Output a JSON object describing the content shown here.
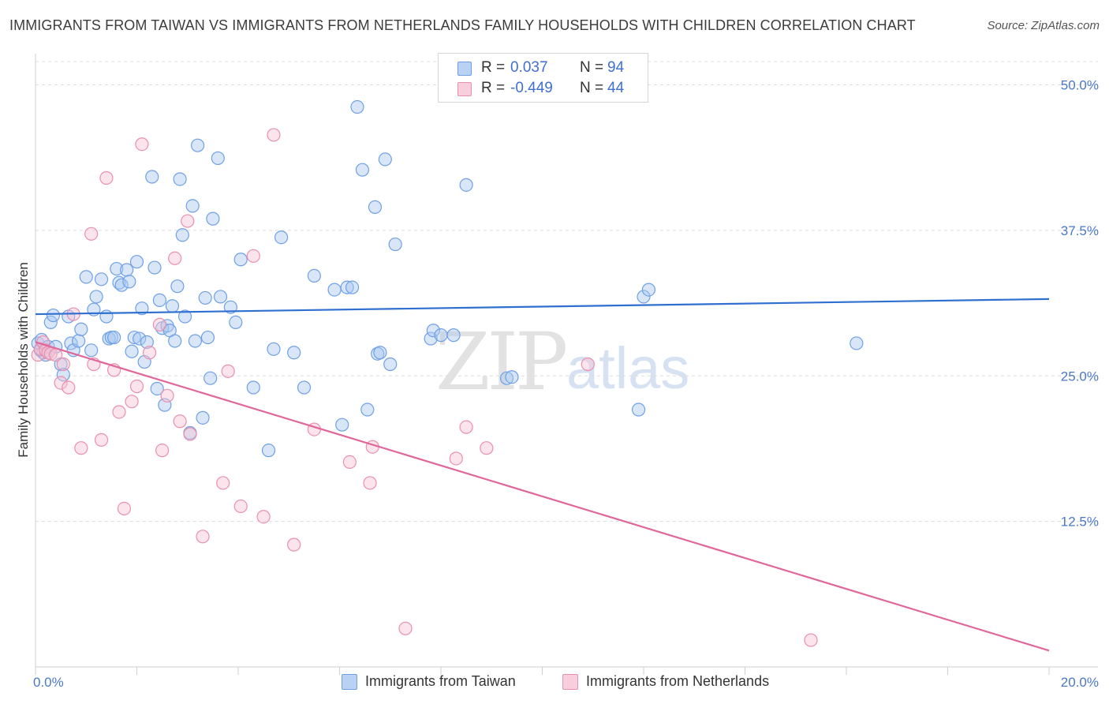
{
  "chart_data": {
    "type": "scatter",
    "title": "IMMIGRANTS FROM TAIWAN VS IMMIGRANTS FROM NETHERLANDS FAMILY HOUSEHOLDS WITH CHILDREN CORRELATION CHART",
    "source": "Source: ZipAtlas.com",
    "xlabel": "",
    "ylabel": "Family Households with Children",
    "xlim": [
      0,
      20
    ],
    "ylim": [
      0,
      52
    ],
    "x_tick_labels": [
      "0.0%",
      "20.0%"
    ],
    "y_ticks": [
      12.5,
      25.0,
      37.5,
      50.0
    ],
    "y_tick_labels": [
      "12.5%",
      "25.0%",
      "37.5%",
      "50.0%"
    ],
    "grid": "horizontal dashed",
    "legend_placement": "top-center",
    "watermark": {
      "zip": "ZIP",
      "atlas": "atlas"
    },
    "legend_top": [
      {
        "r_label": "R =",
        "r_value": "0.037",
        "n_label": "N =",
        "n_value": "94"
      },
      {
        "r_label": "R =",
        "r_value": "-0.449",
        "n_label": "N =",
        "n_value": "44"
      }
    ],
    "series": [
      {
        "name": "Immigrants from Taiwan",
        "color": "#6fa0e6",
        "fill": "#a9c8f0",
        "line_color": "#2f6fcf",
        "trend": {
          "x": [
            0,
            20
          ],
          "y": [
            30.3,
            31.6
          ]
        },
        "points": [
          [
            0.05,
            27.8
          ],
          [
            0.1,
            27.2
          ],
          [
            0.12,
            28.1
          ],
          [
            0.15,
            27.0
          ],
          [
            0.2,
            26.8
          ],
          [
            0.25,
            27.5
          ],
          [
            0.3,
            29.6
          ],
          [
            0.35,
            30.2
          ],
          [
            0.4,
            27.5
          ],
          [
            0.5,
            26.0
          ],
          [
            0.55,
            25.1
          ],
          [
            0.65,
            30.1
          ],
          [
            0.7,
            27.8
          ],
          [
            0.75,
            27.2
          ],
          [
            0.85,
            28.0
          ],
          [
            0.9,
            29.0
          ],
          [
            1.0,
            33.5
          ],
          [
            1.1,
            27.2
          ],
          [
            1.15,
            30.7
          ],
          [
            1.2,
            31.8
          ],
          [
            1.3,
            33.3
          ],
          [
            1.4,
            30.1
          ],
          [
            1.45,
            28.2
          ],
          [
            1.5,
            28.3
          ],
          [
            1.55,
            28.3
          ],
          [
            1.6,
            34.2
          ],
          [
            1.65,
            33.0
          ],
          [
            1.7,
            32.8
          ],
          [
            1.8,
            34.1
          ],
          [
            1.85,
            33.1
          ],
          [
            1.9,
            27.1
          ],
          [
            1.95,
            28.3
          ],
          [
            2.0,
            34.8
          ],
          [
            2.05,
            28.2
          ],
          [
            2.1,
            30.8
          ],
          [
            2.15,
            26.2
          ],
          [
            2.2,
            27.9
          ],
          [
            2.3,
            42.1
          ],
          [
            2.35,
            34.3
          ],
          [
            2.4,
            23.9
          ],
          [
            2.45,
            31.5
          ],
          [
            2.5,
            29.1
          ],
          [
            2.55,
            22.5
          ],
          [
            2.6,
            29.3
          ],
          [
            2.65,
            28.9
          ],
          [
            2.7,
            31.0
          ],
          [
            2.75,
            28.0
          ],
          [
            2.8,
            32.7
          ],
          [
            2.85,
            41.9
          ],
          [
            2.9,
            37.1
          ],
          [
            2.95,
            30.1
          ],
          [
            3.05,
            20.1
          ],
          [
            3.1,
            39.6
          ],
          [
            3.15,
            28.0
          ],
          [
            3.2,
            44.8
          ],
          [
            3.3,
            21.4
          ],
          [
            3.35,
            31.7
          ],
          [
            3.4,
            28.3
          ],
          [
            3.45,
            24.8
          ],
          [
            3.5,
            38.5
          ],
          [
            3.6,
            43.7
          ],
          [
            3.65,
            31.8
          ],
          [
            3.85,
            30.9
          ],
          [
            3.95,
            29.6
          ],
          [
            4.05,
            35.0
          ],
          [
            4.3,
            24.0
          ],
          [
            4.6,
            18.6
          ],
          [
            4.7,
            27.3
          ],
          [
            4.85,
            36.9
          ],
          [
            5.1,
            27.0
          ],
          [
            5.3,
            24.0
          ],
          [
            5.5,
            33.6
          ],
          [
            5.9,
            32.4
          ],
          [
            6.05,
            20.8
          ],
          [
            6.15,
            32.6
          ],
          [
            6.25,
            32.6
          ],
          [
            6.35,
            48.1
          ],
          [
            6.45,
            42.7
          ],
          [
            6.55,
            22.1
          ],
          [
            6.7,
            39.5
          ],
          [
            6.75,
            26.9
          ],
          [
            6.8,
            27.0
          ],
          [
            6.9,
            43.6
          ],
          [
            7.0,
            26.0
          ],
          [
            7.1,
            36.3
          ],
          [
            7.8,
            28.2
          ],
          [
            7.85,
            28.9
          ],
          [
            8.0,
            28.5
          ],
          [
            8.25,
            28.5
          ],
          [
            8.5,
            41.4
          ],
          [
            9.3,
            24.8
          ],
          [
            9.4,
            24.9
          ],
          [
            11.9,
            22.1
          ],
          [
            12.0,
            31.8
          ],
          [
            12.1,
            32.4
          ],
          [
            16.2,
            27.8
          ]
        ]
      },
      {
        "name": "Immigrants from Netherlands",
        "color": "#ea8fae",
        "fill": "#f6c3d4",
        "line_color": "#e0679a",
        "trend": {
          "x": [
            0,
            20
          ],
          "y": [
            27.9,
            1.4
          ]
        },
        "points": [
          [
            0.05,
            26.8
          ],
          [
            0.1,
            27.3
          ],
          [
            0.15,
            27.9
          ],
          [
            0.2,
            27.2
          ],
          [
            0.25,
            27.0
          ],
          [
            0.3,
            26.9
          ],
          [
            0.4,
            26.8
          ],
          [
            0.5,
            24.4
          ],
          [
            0.55,
            26.0
          ],
          [
            0.65,
            24.0
          ],
          [
            0.75,
            30.3
          ],
          [
            0.9,
            18.8
          ],
          [
            1.1,
            37.2
          ],
          [
            1.15,
            26.0
          ],
          [
            1.3,
            19.5
          ],
          [
            1.4,
            42.0
          ],
          [
            1.55,
            25.5
          ],
          [
            1.65,
            21.9
          ],
          [
            1.75,
            13.6
          ],
          [
            1.9,
            22.8
          ],
          [
            2.0,
            24.1
          ],
          [
            2.1,
            44.9
          ],
          [
            2.25,
            27.0
          ],
          [
            2.45,
            29.4
          ],
          [
            2.5,
            18.6
          ],
          [
            2.6,
            23.3
          ],
          [
            2.75,
            35.1
          ],
          [
            2.85,
            21.1
          ],
          [
            3.0,
            38.3
          ],
          [
            3.05,
            20.0
          ],
          [
            3.3,
            11.2
          ],
          [
            3.7,
            15.8
          ],
          [
            3.8,
            25.4
          ],
          [
            4.05,
            13.8
          ],
          [
            4.3,
            35.3
          ],
          [
            4.5,
            12.9
          ],
          [
            4.7,
            45.7
          ],
          [
            5.1,
            10.5
          ],
          [
            5.5,
            20.4
          ],
          [
            6.2,
            17.6
          ],
          [
            6.6,
            15.8
          ],
          [
            6.65,
            18.9
          ],
          [
            7.3,
            3.3
          ],
          [
            8.3,
            17.9
          ],
          [
            8.5,
            20.6
          ],
          [
            8.9,
            18.8
          ],
          [
            10.9,
            26.0
          ],
          [
            15.3,
            2.3
          ]
        ]
      }
    ]
  }
}
